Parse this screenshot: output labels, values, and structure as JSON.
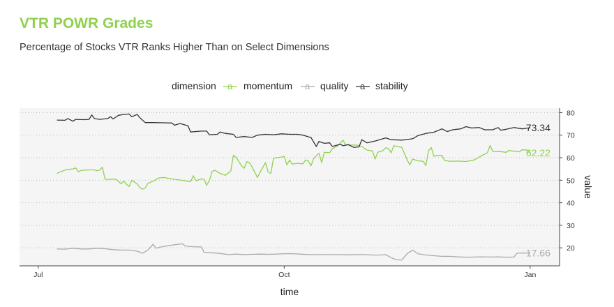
{
  "header": {
    "title": "VTR POWR Grades",
    "subtitle": "Percentage of Stocks VTR Ranks Higher Than on Select Dimensions"
  },
  "chart_data": {
    "type": "line",
    "legend": {
      "title": "dimension",
      "position": "top",
      "key_glyph": "a"
    },
    "xlabel": "time",
    "ylabel": "value",
    "x_ticks": [
      {
        "date": "2024-07-01",
        "label": "Jul"
      },
      {
        "date": "2024-10-01",
        "label": "Oct"
      },
      {
        "date": "2025-01-01",
        "label": "Jan"
      }
    ],
    "y_ticks": [
      20,
      30,
      40,
      50,
      60,
      70,
      80
    ],
    "xlim": [
      "2024-06-24",
      "2025-01-12"
    ],
    "ylim": [
      12,
      82
    ],
    "grid": true,
    "series": [
      {
        "name": "momentum",
        "color": "#8fd14f",
        "end_label": "62.22",
        "points": [
          [
            "2024-07-08",
            53.0
          ],
          [
            "2024-07-09",
            53.6
          ],
          [
            "2024-07-10",
            54.0
          ],
          [
            "2024-07-11",
            54.5
          ],
          [
            "2024-07-12",
            54.8
          ],
          [
            "2024-07-14",
            55.0
          ],
          [
            "2024-07-15",
            55.5
          ],
          [
            "2024-07-16",
            53.8
          ],
          [
            "2024-07-17",
            54.3
          ],
          [
            "2024-07-18",
            54.5
          ],
          [
            "2024-07-20",
            54.6
          ],
          [
            "2024-07-22",
            54.6
          ],
          [
            "2024-07-23",
            54.2
          ],
          [
            "2024-07-24",
            54.5
          ],
          [
            "2024-07-25",
            55.8
          ],
          [
            "2024-07-26",
            50.4
          ],
          [
            "2024-07-28",
            50.4
          ],
          [
            "2024-07-30",
            50.5
          ],
          [
            "2024-08-01",
            48.5
          ],
          [
            "2024-08-02",
            49.6
          ],
          [
            "2024-08-03",
            48.2
          ],
          [
            "2024-08-04",
            47.2
          ],
          [
            "2024-08-05",
            50.0
          ],
          [
            "2024-08-06",
            49.2
          ],
          [
            "2024-08-07",
            48.4
          ],
          [
            "2024-08-08",
            46.8
          ],
          [
            "2024-08-09",
            46.0
          ],
          [
            "2024-08-10",
            46.6
          ],
          [
            "2024-08-11",
            48.6
          ],
          [
            "2024-08-13",
            49.6
          ],
          [
            "2024-08-15",
            51.0
          ],
          [
            "2024-08-17",
            51.2
          ],
          [
            "2024-08-20",
            50.6
          ],
          [
            "2024-08-24",
            49.9
          ],
          [
            "2024-08-27",
            49.4
          ],
          [
            "2024-08-28",
            52.0
          ],
          [
            "2024-08-29",
            49.8
          ],
          [
            "2024-08-31",
            50.6
          ],
          [
            "2024-09-01",
            50.4
          ],
          [
            "2024-09-02",
            47.8
          ],
          [
            "2024-09-03",
            49.8
          ],
          [
            "2024-09-04",
            53.8
          ],
          [
            "2024-09-05",
            54.5
          ],
          [
            "2024-09-07",
            53.0
          ],
          [
            "2024-09-09",
            52.2
          ],
          [
            "2024-09-11",
            54.0
          ],
          [
            "2024-09-12",
            61.0
          ],
          [
            "2024-09-13",
            60.2
          ],
          [
            "2024-09-15",
            56.5
          ],
          [
            "2024-09-16",
            55.3
          ],
          [
            "2024-09-17",
            58.2
          ],
          [
            "2024-09-18",
            57.8
          ],
          [
            "2024-09-19",
            55.8
          ],
          [
            "2024-09-21",
            51.2
          ],
          [
            "2024-09-22",
            53.6
          ],
          [
            "2024-09-24",
            57.8
          ],
          [
            "2024-09-25",
            53.6
          ],
          [
            "2024-09-26",
            53.0
          ],
          [
            "2024-09-27",
            59.8
          ],
          [
            "2024-09-30",
            60.3
          ],
          [
            "2024-10-01",
            60.6
          ],
          [
            "2024-10-02",
            56.8
          ],
          [
            "2024-10-03",
            59.0
          ],
          [
            "2024-10-04",
            57.2
          ],
          [
            "2024-10-06",
            57.5
          ],
          [
            "2024-10-08",
            57.3
          ],
          [
            "2024-10-09",
            59.0
          ],
          [
            "2024-10-10",
            58.6
          ],
          [
            "2024-10-11",
            56.4
          ],
          [
            "2024-10-12",
            59.6
          ],
          [
            "2024-10-14",
            62.0
          ],
          [
            "2024-10-15",
            57.8
          ],
          [
            "2024-10-16",
            62.4
          ],
          [
            "2024-10-18",
            62.2
          ],
          [
            "2024-10-19",
            64.0
          ],
          [
            "2024-10-21",
            65.2
          ],
          [
            "2024-10-22",
            66.5
          ],
          [
            "2024-10-23",
            67.8
          ],
          [
            "2024-10-24",
            65.6
          ],
          [
            "2024-10-26",
            65.6
          ],
          [
            "2024-10-28",
            65.6
          ],
          [
            "2024-10-30",
            65.0
          ],
          [
            "2024-11-01",
            63.4
          ],
          [
            "2024-11-03",
            63.0
          ],
          [
            "2024-11-04",
            59.4
          ],
          [
            "2024-11-05",
            62.4
          ],
          [
            "2024-11-07",
            63.2
          ],
          [
            "2024-11-08",
            64.4
          ],
          [
            "2024-11-09",
            64.0
          ],
          [
            "2024-11-10",
            62.2
          ],
          [
            "2024-11-11",
            65.4
          ],
          [
            "2024-11-12",
            65.0
          ],
          [
            "2024-11-14",
            64.6
          ],
          [
            "2024-11-16",
            59.0
          ],
          [
            "2024-11-17",
            56.8
          ],
          [
            "2024-11-18",
            59.4
          ],
          [
            "2024-11-20",
            58.6
          ],
          [
            "2024-11-22",
            58.4
          ],
          [
            "2024-11-23",
            56.5
          ],
          [
            "2024-11-24",
            63.2
          ],
          [
            "2024-11-25",
            64.5
          ],
          [
            "2024-11-26",
            60.6
          ],
          [
            "2024-11-27",
            61.0
          ],
          [
            "2024-11-29",
            61.0
          ],
          [
            "2024-11-30",
            58.8
          ],
          [
            "2024-12-02",
            58.4
          ],
          [
            "2024-12-05",
            58.5
          ],
          [
            "2024-12-08",
            58.3
          ],
          [
            "2024-12-11",
            59.0
          ],
          [
            "2024-12-14",
            61.0
          ],
          [
            "2024-12-16",
            62.2
          ],
          [
            "2024-12-17",
            65.4
          ],
          [
            "2024-12-18",
            62.8
          ],
          [
            "2024-12-21",
            62.7
          ],
          [
            "2024-12-23",
            62.4
          ],
          [
            "2024-12-24",
            63.2
          ],
          [
            "2024-12-26",
            62.9
          ],
          [
            "2024-12-28",
            62.6
          ],
          [
            "2024-12-29",
            63.5
          ],
          [
            "2024-12-31",
            63.4
          ],
          [
            "2025-01-01",
            62.2
          ]
        ]
      },
      {
        "name": "quality",
        "color": "#aaaaaa",
        "end_label": "17.66",
        "points": [
          [
            "2024-07-08",
            19.5
          ],
          [
            "2024-07-11",
            19.4
          ],
          [
            "2024-07-14",
            19.8
          ],
          [
            "2024-07-17",
            19.5
          ],
          [
            "2024-07-20",
            19.5
          ],
          [
            "2024-07-23",
            19.8
          ],
          [
            "2024-07-26",
            19.6
          ],
          [
            "2024-07-29",
            19.2
          ],
          [
            "2024-08-01",
            19.0
          ],
          [
            "2024-08-04",
            19.0
          ],
          [
            "2024-08-07",
            18.5
          ],
          [
            "2024-08-09",
            17.6
          ],
          [
            "2024-08-11",
            19.0
          ],
          [
            "2024-08-13",
            21.6
          ],
          [
            "2024-08-14",
            19.8
          ],
          [
            "2024-08-16",
            20.4
          ],
          [
            "2024-08-19",
            21.0
          ],
          [
            "2024-08-22",
            21.5
          ],
          [
            "2024-08-24",
            21.8
          ],
          [
            "2024-08-25",
            20.8
          ],
          [
            "2024-08-28",
            20.5
          ],
          [
            "2024-08-31",
            20.4
          ],
          [
            "2024-09-01",
            18.0
          ],
          [
            "2024-09-04",
            17.8
          ],
          [
            "2024-09-07",
            17.5
          ],
          [
            "2024-09-10",
            17.0
          ],
          [
            "2024-09-13",
            17.2
          ],
          [
            "2024-09-16",
            17.0
          ],
          [
            "2024-09-19",
            17.1
          ],
          [
            "2024-09-22",
            17.2
          ],
          [
            "2024-09-25",
            17.1
          ],
          [
            "2024-09-28",
            17.2
          ],
          [
            "2024-10-01",
            17.4
          ],
          [
            "2024-10-04",
            17.4
          ],
          [
            "2024-10-07",
            17.2
          ],
          [
            "2024-10-10",
            17.0
          ],
          [
            "2024-10-13",
            17.0
          ],
          [
            "2024-10-16",
            17.0
          ],
          [
            "2024-10-19",
            17.0
          ],
          [
            "2024-10-22",
            17.0
          ],
          [
            "2024-10-25",
            16.9
          ],
          [
            "2024-10-28",
            17.0
          ],
          [
            "2024-10-31",
            17.0
          ],
          [
            "2024-11-03",
            16.8
          ],
          [
            "2024-11-06",
            16.8
          ],
          [
            "2024-11-08",
            17.0
          ],
          [
            "2024-11-10",
            15.6
          ],
          [
            "2024-11-12",
            14.7
          ],
          [
            "2024-11-14",
            14.6
          ],
          [
            "2024-11-16",
            17.4
          ],
          [
            "2024-11-18",
            19.0
          ],
          [
            "2024-11-20",
            17.4
          ],
          [
            "2024-11-23",
            16.8
          ],
          [
            "2024-11-26",
            16.5
          ],
          [
            "2024-11-29",
            16.2
          ],
          [
            "2024-12-02",
            16.2
          ],
          [
            "2024-12-05",
            16.0
          ],
          [
            "2024-12-08",
            15.8
          ],
          [
            "2024-12-11",
            15.9
          ],
          [
            "2024-12-14",
            16.0
          ],
          [
            "2024-12-17",
            15.9
          ],
          [
            "2024-12-20",
            16.0
          ],
          [
            "2024-12-23",
            15.8
          ],
          [
            "2024-12-26",
            15.9
          ],
          [
            "2024-12-27",
            17.6
          ],
          [
            "2024-12-29",
            17.7
          ],
          [
            "2025-01-01",
            17.66
          ]
        ]
      },
      {
        "name": "stability",
        "color": "#333333",
        "end_label": "73.34",
        "points": [
          [
            "2024-07-08",
            76.7
          ],
          [
            "2024-07-11",
            76.6
          ],
          [
            "2024-07-12",
            77.4
          ],
          [
            "2024-07-14",
            76.2
          ],
          [
            "2024-07-15",
            77.0
          ],
          [
            "2024-07-18",
            76.9
          ],
          [
            "2024-07-20",
            77.0
          ],
          [
            "2024-07-21",
            79.0
          ],
          [
            "2024-07-22",
            77.4
          ],
          [
            "2024-07-24",
            77.0
          ],
          [
            "2024-07-27",
            77.4
          ],
          [
            "2024-07-28",
            78.2
          ],
          [
            "2024-07-29",
            77.2
          ],
          [
            "2024-07-31",
            78.8
          ],
          [
            "2024-08-02",
            79.2
          ],
          [
            "2024-08-04",
            79.4
          ],
          [
            "2024-08-05",
            78.2
          ],
          [
            "2024-08-07",
            79.2
          ],
          [
            "2024-08-08",
            77.8
          ],
          [
            "2024-08-10",
            75.6
          ],
          [
            "2024-08-13",
            75.6
          ],
          [
            "2024-08-17",
            75.5
          ],
          [
            "2024-08-20",
            75.4
          ],
          [
            "2024-08-21",
            74.4
          ],
          [
            "2024-08-23",
            75.2
          ],
          [
            "2024-08-26",
            74.2
          ],
          [
            "2024-08-27",
            71.4
          ],
          [
            "2024-08-31",
            71.8
          ],
          [
            "2024-09-02",
            71.8
          ],
          [
            "2024-09-03",
            70.2
          ],
          [
            "2024-09-06",
            70.4
          ],
          [
            "2024-09-07",
            71.4
          ],
          [
            "2024-09-09",
            70.8
          ],
          [
            "2024-09-12",
            70.4
          ],
          [
            "2024-09-13",
            69.0
          ],
          [
            "2024-09-16",
            69.4
          ],
          [
            "2024-09-19",
            69.0
          ],
          [
            "2024-09-21",
            70.0
          ],
          [
            "2024-09-24",
            70.4
          ],
          [
            "2024-09-27",
            70.2
          ],
          [
            "2024-09-30",
            70.6
          ],
          [
            "2024-10-03",
            70.4
          ],
          [
            "2024-10-06",
            70.4
          ],
          [
            "2024-10-08",
            70.0
          ],
          [
            "2024-10-10",
            69.3
          ],
          [
            "2024-10-11",
            69.0
          ],
          [
            "2024-10-13",
            65.0
          ],
          [
            "2024-10-14",
            67.2
          ],
          [
            "2024-10-16",
            66.4
          ],
          [
            "2024-10-18",
            66.6
          ],
          [
            "2024-10-19",
            65.0
          ],
          [
            "2024-10-22",
            66.0
          ],
          [
            "2024-10-23",
            65.3
          ],
          [
            "2024-10-25",
            65.8
          ],
          [
            "2024-10-27",
            64.6
          ],
          [
            "2024-10-29",
            64.8
          ],
          [
            "2024-10-30",
            68.0
          ],
          [
            "2024-11-01",
            66.6
          ],
          [
            "2024-11-04",
            67.4
          ],
          [
            "2024-11-08",
            68.8
          ],
          [
            "2024-11-10",
            68.0
          ],
          [
            "2024-11-14",
            67.8
          ],
          [
            "2024-11-18",
            68.4
          ],
          [
            "2024-11-20",
            69.8
          ],
          [
            "2024-11-23",
            70.8
          ],
          [
            "2024-11-26",
            71.3
          ],
          [
            "2024-11-29",
            72.8
          ],
          [
            "2024-12-01",
            71.6
          ],
          [
            "2024-12-03",
            72.4
          ],
          [
            "2024-12-06",
            72.8
          ],
          [
            "2024-12-08",
            73.8
          ],
          [
            "2024-12-10",
            73.2
          ],
          [
            "2024-12-13",
            73.4
          ],
          [
            "2024-12-15",
            72.4
          ],
          [
            "2024-12-18",
            72.4
          ],
          [
            "2024-12-20",
            73.4
          ],
          [
            "2024-12-21",
            72.2
          ],
          [
            "2024-12-23",
            72.6
          ],
          [
            "2024-12-26",
            73.4
          ],
          [
            "2024-12-29",
            72.8
          ],
          [
            "2025-01-01",
            73.34
          ]
        ]
      }
    ]
  }
}
